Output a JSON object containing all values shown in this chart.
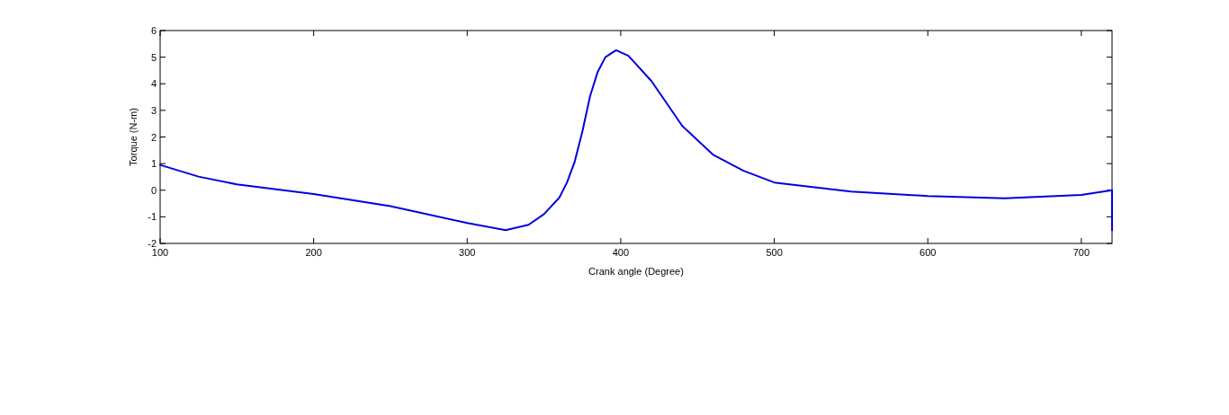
{
  "chart_data": {
    "type": "line",
    "xlabel": "Crank angle (Degree)",
    "ylabel": "Torque (N-m)",
    "xlim": [
      100,
      720
    ],
    "ylim": [
      -2,
      6
    ],
    "xticks": [
      100,
      200,
      300,
      400,
      500,
      600,
      700
    ],
    "yticks": [
      -2,
      -1,
      0,
      1,
      2,
      3,
      4,
      5,
      6
    ],
    "grid": false,
    "line_style": "solid",
    "marker": "none",
    "series": [
      {
        "color": "#0000e0",
        "x": [
          100,
          125,
          150,
          200,
          250,
          300,
          325,
          340,
          350,
          360,
          365,
          370,
          375,
          380,
          385,
          390,
          397,
          405,
          420,
          440,
          460,
          480,
          500,
          520,
          550,
          600,
          650,
          700,
          720,
          720
        ],
        "values": [
          0.95,
          0.51,
          0.22,
          -0.14,
          -0.6,
          -1.23,
          -1.5,
          -1.3,
          -0.9,
          -0.28,
          0.29,
          1.07,
          2.2,
          3.53,
          4.45,
          5.0,
          5.26,
          5.05,
          4.1,
          2.42,
          1.34,
          0.73,
          0.29,
          0.15,
          -0.05,
          -0.22,
          -0.3,
          -0.18,
          0,
          -1.5
        ]
      }
    ]
  }
}
